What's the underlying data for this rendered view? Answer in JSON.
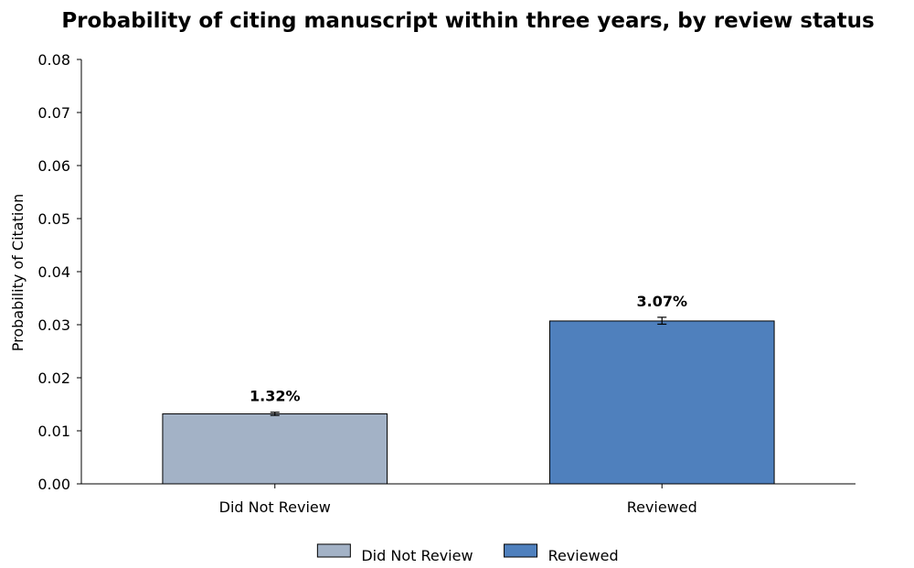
{
  "chart_data": {
    "type": "bar",
    "title": "Probability of citing manuscript within three years, by review status",
    "xlabel": "",
    "ylabel": "Probability of Citation",
    "ylim": [
      0,
      0.08
    ],
    "yticks": [
      0.0,
      0.01,
      0.02,
      0.03,
      0.04,
      0.05,
      0.06,
      0.07,
      0.08
    ],
    "ytick_labels": [
      "0.00",
      "0.01",
      "0.02",
      "0.03",
      "0.04",
      "0.05",
      "0.06",
      "0.07",
      "0.08"
    ],
    "categories": [
      "Did Not Review",
      "Reviewed"
    ],
    "values": [
      0.0132,
      0.0307
    ],
    "error_low": [
      0.0129,
      0.0301
    ],
    "error_high": [
      0.0135,
      0.0314
    ],
    "data_labels": [
      "1.32%",
      "3.07%"
    ],
    "colors": [
      "#a3b2c6",
      "#4f80bd"
    ],
    "edge_color": "#000000",
    "legend": {
      "position": "bottom-center",
      "entries": [
        "Did Not Review",
        "Reviewed"
      ]
    },
    "grid": false
  }
}
